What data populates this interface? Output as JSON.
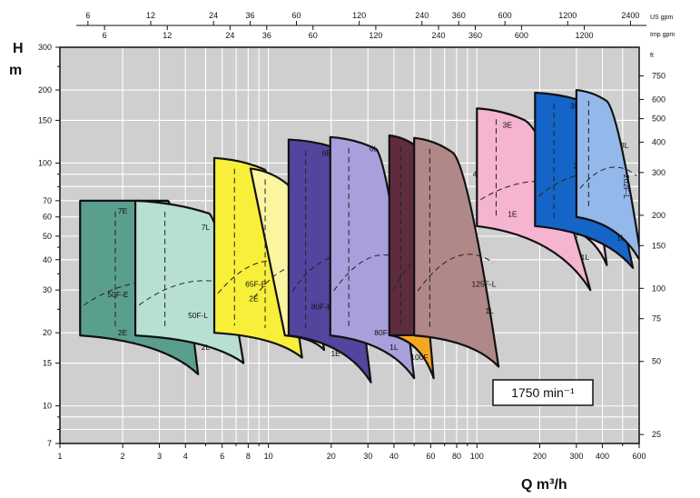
{
  "chart_data": {
    "type": "area",
    "title": "",
    "xlabel": "Q m³/h",
    "ylabel": "H m",
    "x_scale": "log",
    "y_scale": "log",
    "xlim": [
      1,
      600
    ],
    "ylim": [
      7,
      300
    ],
    "grid": true,
    "speed_label": "1750 min⁻¹",
    "x_ticks": [
      {
        "v": 1,
        "l": "1"
      },
      {
        "v": 2,
        "l": "2"
      },
      {
        "v": 3,
        "l": "3"
      },
      {
        "v": 4,
        "l": "4"
      },
      {
        "v": 6,
        "l": "6"
      },
      {
        "v": 8,
        "l": "8"
      },
      {
        "v": 10,
        "l": "10"
      },
      {
        "v": 20,
        "l": "20"
      },
      {
        "v": 30,
        "l": "30"
      },
      {
        "v": 40,
        "l": "40"
      },
      {
        "v": 60,
        "l": "60"
      },
      {
        "v": 80,
        "l": "80"
      },
      {
        "v": 100,
        "l": "100"
      },
      {
        "v": 200,
        "l": "200"
      },
      {
        "v": 300,
        "l": "300"
      },
      {
        "v": 400,
        "l": "400"
      },
      {
        "v": 600,
        "l": "600"
      }
    ],
    "y_ticks": [
      {
        "v": 7,
        "l": "7"
      },
      {
        "v": 10,
        "l": "10"
      },
      {
        "v": 15,
        "l": "15"
      },
      {
        "v": 20,
        "l": "20"
      },
      {
        "v": 30,
        "l": "30"
      },
      {
        "v": 40,
        "l": "40"
      },
      {
        "v": 50,
        "l": "50"
      },
      {
        "v": 60,
        "l": "60"
      },
      {
        "v": 70,
        "l": "70"
      },
      {
        "v": 100,
        "l": "100"
      },
      {
        "v": 150,
        "l": "150"
      },
      {
        "v": 200,
        "l": "200"
      },
      {
        "v": 300,
        "l": "300"
      }
    ],
    "ft_axis": {
      "unit": "ft",
      "ticks": [
        {
          "v": 25,
          "l": "25"
        },
        {
          "v": 50,
          "l": "50"
        },
        {
          "v": 75,
          "l": "75"
        },
        {
          "v": 100,
          "l": "100"
        },
        {
          "v": 150,
          "l": "150"
        },
        {
          "v": 200,
          "l": "200"
        },
        {
          "v": 300,
          "l": "300"
        },
        {
          "v": 400,
          "l": "400"
        },
        {
          "v": 500,
          "l": "500"
        },
        {
          "v": 600,
          "l": "600"
        },
        {
          "v": 750,
          "l": "750"
        }
      ]
    },
    "us_gpm_axis": {
      "unit": "US gpm",
      "ticks": [
        {
          "v": 6,
          "l": "6"
        },
        {
          "v": 12,
          "l": "12"
        },
        {
          "v": 24,
          "l": "24"
        },
        {
          "v": 36,
          "l": "36"
        },
        {
          "v": 60,
          "l": "60"
        },
        {
          "v": 120,
          "l": "120"
        },
        {
          "v": 240,
          "l": "240"
        },
        {
          "v": 360,
          "l": "360"
        },
        {
          "v": 600,
          "l": "600"
        },
        {
          "v": 1200,
          "l": "1200"
        },
        {
          "v": 2400,
          "l": "2400"
        }
      ]
    },
    "imp_gpm_axis": {
      "unit": "Imp gpm",
      "ticks": [
        {
          "v": 6,
          "l": "6"
        },
        {
          "v": 12,
          "l": "12"
        },
        {
          "v": 24,
          "l": "24"
        },
        {
          "v": 36,
          "l": "36"
        },
        {
          "v": 60,
          "l": "60"
        },
        {
          "v": 120,
          "l": "120"
        },
        {
          "v": 240,
          "l": "240"
        },
        {
          "v": 360,
          "l": "360"
        },
        {
          "v": 600,
          "l": "600"
        },
        {
          "v": 1200,
          "l": "1200"
        }
      ]
    },
    "series": [
      {
        "name": "50F-E",
        "color": "#5a9e8e",
        "corners": {
          "top_left": [
            1.25,
            70
          ],
          "bottom_left": [
            1.25,
            19.5
          ],
          "top_right": [
            3.3,
            70
          ],
          "bottom_right": [
            4.6,
            13.5
          ]
        },
        "curve_labels": [
          {
            "t": "7E",
            "x": 2.0,
            "y": 62
          },
          {
            "t": "2E",
            "x": 2.0,
            "y": 19.5
          }
        ],
        "label_pos": [
          1.9,
          28
        ]
      },
      {
        "name": "50F-L",
        "color": "#b8e0d2",
        "corners": {
          "top_left": [
            2.3,
            70
          ],
          "bottom_left": [
            2.3,
            19.5
          ],
          "top_right": [
            5.2,
            62
          ],
          "bottom_right": [
            7.6,
            15
          ]
        },
        "curve_labels": [
          {
            "t": "7L",
            "x": 5.0,
            "y": 53
          },
          {
            "t": "2L",
            "x": 5.0,
            "y": 17
          }
        ],
        "label_pos": [
          4.6,
          23
        ]
      },
      {
        "name": "65F-E",
        "color": "#f7ef3a",
        "corners": {
          "top_left": [
            5.5,
            105
          ],
          "bottom_left": [
            5.5,
            20
          ],
          "top_right": [
            9.6,
            94
          ],
          "bottom_right": [
            14.5,
            15.8
          ]
        },
        "curve_labels": [
          {
            "t": "7E",
            "x": 9.0,
            "y": 89
          },
          {
            "t": "2E",
            "x": 8.5,
            "y": 27
          }
        ],
        "label_pos": [
          8.7,
          31
        ]
      },
      {
        "name": "65F-L",
        "color": "#fbf5a2",
        "corners": {
          "top_left": [
            8.2,
            95
          ],
          "bottom_left": [
            12.0,
            19.5
          ],
          "top_right": [
            12.3,
            82
          ],
          "bottom_right": [
            18.5,
            17
          ]
        },
        "curve_labels": [
          {
            "t": "7L",
            "x": 13.0,
            "y": 76
          },
          {
            "t": "2L",
            "x": 14.5,
            "y": 21
          }
        ],
        "label_pos": [
          16.0,
          27
        ],
        "vertical": true
      },
      {
        "name": "80F-E",
        "color": "#55449e",
        "corners": {
          "top_left": [
            12.5,
            125
          ],
          "bottom_left": [
            12.5,
            19.5
          ],
          "top_right": [
            20,
            117
          ],
          "bottom_right": [
            31,
            12.5
          ]
        },
        "curve_labels": [
          {
            "t": "6E",
            "x": 19.0,
            "y": 107
          },
          {
            "t": "1E",
            "x": 21.0,
            "y": 16
          }
        ],
        "label_pos": [
          18.0,
          25
        ]
      },
      {
        "name": "80F-L",
        "color": "#a8a0db",
        "corners": {
          "top_left": [
            19.8,
            128
          ],
          "bottom_left": [
            19.8,
            19.5
          ],
          "top_right": [
            33,
            114
          ],
          "bottom_right": [
            50,
            13
          ]
        },
        "curve_labels": [
          {
            "t": "6L",
            "x": 32.0,
            "y": 112
          },
          {
            "t": "1L",
            "x": 40.0,
            "y": 17
          }
        ],
        "label_pos": [
          36.0,
          19.5
        ]
      },
      {
        "name": "100F",
        "color": "#f5a623",
        "corners": {
          "top_left": [
            39,
            93
          ],
          "bottom_left": [
            39,
            19.5
          ],
          "top_right": [
            48,
            80
          ],
          "bottom_right": [
            62,
            13
          ]
        },
        "curve_labels": [
          {
            "t": "5",
            "x": 56.0,
            "y": 60
          }
        ],
        "label_pos": [
          53.0,
          15.5
        ]
      },
      {
        "name": "125F-E",
        "color": "#5e2c3e",
        "corners": {
          "top_left": [
            38,
            130
          ],
          "bottom_left": [
            38,
            19.5
          ],
          "top_right": [
            52,
            116
          ],
          "bottom_right": [
            80,
            20
          ]
        },
        "curve_labels": [
          {
            "t": "4E",
            "x": 63.0,
            "y": 95
          },
          {
            "t": "1E",
            "x": 73.0,
            "y": 25
          }
        ],
        "label_pos": [
          64.0,
          75
        ]
      },
      {
        "name": "125F-L",
        "color": "#b08888",
        "corners": {
          "top_left": [
            50,
            127
          ],
          "bottom_left": [
            50,
            19.5
          ],
          "top_right": [
            77,
            110
          ],
          "bottom_right": [
            127,
            14.5
          ]
        },
        "curve_labels": [
          {
            "t": "4L",
            "x": 100.0,
            "y": 88
          },
          {
            "t": "1L",
            "x": 115.0,
            "y": 24
          }
        ],
        "label_pos": [
          108.0,
          31
        ]
      },
      {
        "name": "152F-E",
        "color": "#f5b4cf",
        "corners": {
          "top_left": [
            100,
            168
          ],
          "bottom_left": [
            100,
            55
          ],
          "top_right": [
            170,
            150
          ],
          "bottom_right": [
            350,
            30
          ]
        },
        "curve_labels": [
          {
            "t": "3E",
            "x": 140.0,
            "y": 140
          },
          {
            "t": "1E",
            "x": 148.0,
            "y": 60
          }
        ],
        "label_pos": [
          215.0,
          58
        ]
      },
      {
        "name": "152F-L",
        "color": "#fbd9e6",
        "corners": {
          "top_left": [
            250,
            140
          ],
          "bottom_left": [
            250,
            55
          ],
          "top_right": [
            320,
            125
          ],
          "bottom_right": [
            420,
            38
          ]
        },
        "curve_labels": [
          {
            "t": "3L",
            "x": 317.0,
            "y": 88
          },
          {
            "t": "1L",
            "x": 330.0,
            "y": 40
          }
        ],
        "label_pos": [
          300.0,
          55
        ],
        "vertical": true
      },
      {
        "name": "202F-E",
        "color": "#1565c8",
        "corners": {
          "top_left": [
            190,
            195
          ],
          "bottom_left": [
            190,
            55
          ],
          "top_right": [
            320,
            180
          ],
          "bottom_right": [
            560,
            37
          ]
        },
        "curve_labels": [
          {
            "t": "3E",
            "x": 295.0,
            "y": 168
          },
          {
            "t": "1E",
            "x": 360.0,
            "y": 62
          }
        ],
        "label_pos": [
          335.0,
          95
        ]
      },
      {
        "name": "202F-L",
        "color": "#93b8ea",
        "corners": {
          "top_left": [
            300,
            200
          ],
          "bottom_left": [
            300,
            60
          ],
          "top_right": [
            420,
            180
          ],
          "bottom_right": [
            620,
            38
          ]
        },
        "curve_labels": [
          {
            "t": "3L",
            "x": 510.0,
            "y": 115
          },
          {
            "t": "1L",
            "x": 490.0,
            "y": 48
          }
        ],
        "label_pos": [
          505.0,
          80
        ],
        "vertical": true
      }
    ]
  }
}
